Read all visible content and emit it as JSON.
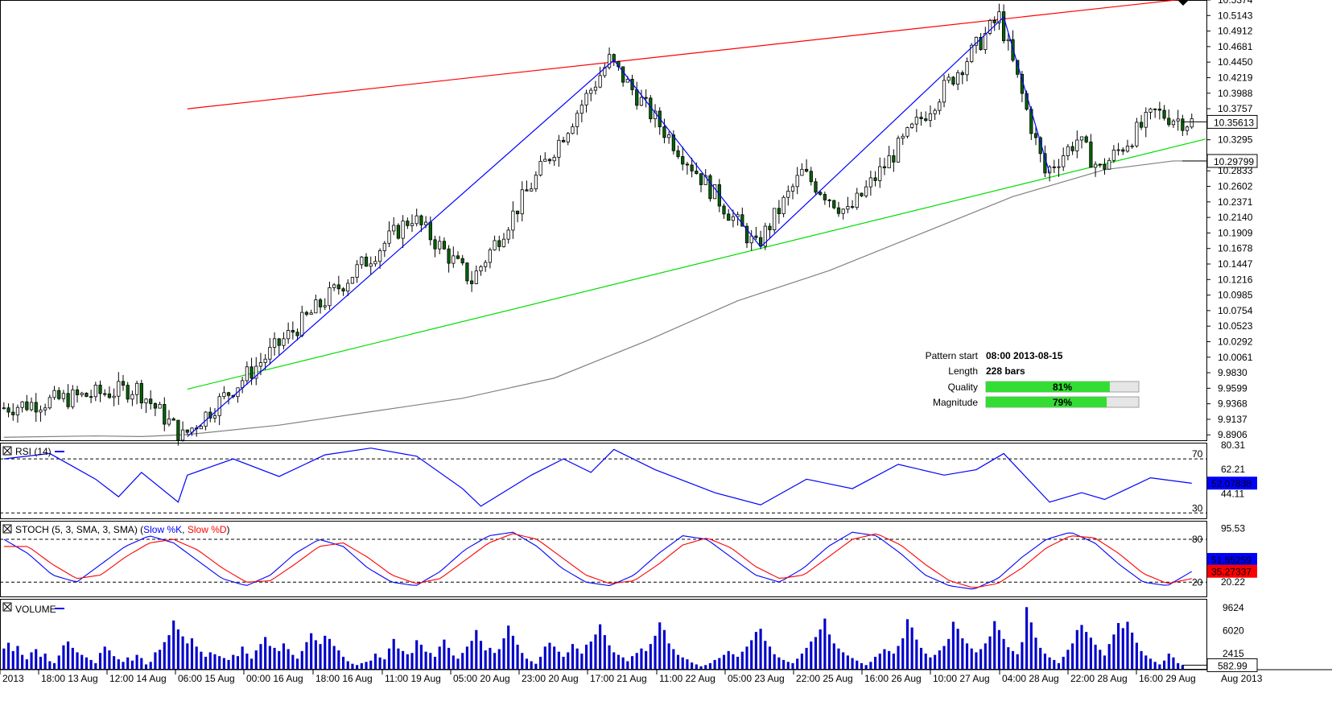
{
  "chart_data": [
    {
      "type": "candlestick",
      "panel": "price",
      "y_ticks": [
        "10.5374",
        "10.5143",
        "10.4912",
        "10.4681",
        "10.4450",
        "10.4219",
        "10.3988",
        "10.3757",
        "10.3295",
        "10.2833",
        "10.2602",
        "10.2371",
        "10.2140",
        "10.1909",
        "10.1678",
        "10.1447",
        "10.1216",
        "10.0985",
        "10.0754",
        "10.0523",
        "10.0292",
        "10.0061",
        "9.9830",
        "9.9599",
        "9.9368",
        "9.9137",
        "9.8906"
      ],
      "ylim": [
        9.8825,
        10.5374
      ],
      "last_price": "10.35613",
      "ma_value": "10.29799",
      "x_labels": [
        "2013",
        "18:00 13 Aug",
        "12:00 14 Aug",
        "06:00 15 Aug",
        "00:00 16 Aug",
        "18:00 16 Aug",
        "11:00 19 Aug",
        "05:00 20 Aug",
        "23:00 20 Aug",
        "17:00 21 Aug",
        "11:00 22 Aug",
        "05:00 23 Aug",
        "22:00 25 Aug",
        "16:00 26 Aug",
        "10:00 27 Aug",
        "04:00 28 Aug",
        "22:00 28 Aug",
        "16:00 29 Aug",
        "Aug 2013"
      ],
      "key_points": [
        {
          "bar": 0,
          "price": 9.93
        },
        {
          "bar": 30,
          "price": 9.96
        },
        {
          "bar": 40,
          "price": 9.888
        },
        {
          "bar": 90,
          "price": 10.215
        },
        {
          "bar": 103,
          "price": 10.12
        },
        {
          "bar": 133,
          "price": 10.448
        },
        {
          "bar": 143,
          "price": 10.36
        },
        {
          "bar": 165,
          "price": 10.17
        },
        {
          "bar": 175,
          "price": 10.28
        },
        {
          "bar": 185,
          "price": 10.22
        },
        {
          "bar": 218,
          "price": 10.512
        },
        {
          "bar": 228,
          "price": 10.28
        },
        {
          "bar": 235,
          "price": 10.33
        },
        {
          "bar": 240,
          "price": 10.285
        },
        {
          "bar": 252,
          "price": 10.37
        },
        {
          "bar": 259,
          "price": 10.356
        }
      ],
      "pattern_lines": {
        "resistance": {
          "color": "#ff0000",
          "from": {
            "bar": 40,
            "price": 10.3755
          },
          "to": {
            "bar": 259,
            "price": 10.54
          }
        },
        "support": {
          "color": "#00dd00",
          "from": {
            "bar": 40,
            "price": 9.9585
          },
          "to": {
            "bar": 262,
            "price": 10.3305
          }
        },
        "zigzag": {
          "color": "#0000ff",
          "points": [
            {
              "bar": 40,
              "price": 9.888
            },
            {
              "bar": 133,
              "price": 10.448
            },
            {
              "bar": 165,
              "price": 10.17
            },
            {
              "bar": 218,
              "price": 10.512
            },
            {
              "bar": 228,
              "price": 10.28
            }
          ]
        }
      },
      "moving_average": {
        "color": "#808080",
        "points": [
          {
            "bar": 0,
            "price": 9.887
          },
          {
            "bar": 20,
            "price": 9.889
          },
          {
            "bar": 30,
            "price": 9.888
          },
          {
            "bar": 40,
            "price": 9.891
          },
          {
            "bar": 60,
            "price": 9.905
          },
          {
            "bar": 80,
            "price": 9.925
          },
          {
            "bar": 100,
            "price": 9.945
          },
          {
            "bar": 120,
            "price": 9.975
          },
          {
            "bar": 140,
            "price": 10.03
          },
          {
            "bar": 160,
            "price": 10.09
          },
          {
            "bar": 180,
            "price": 10.135
          },
          {
            "bar": 200,
            "price": 10.19
          },
          {
            "bar": 220,
            "price": 10.245
          },
          {
            "bar": 240,
            "price": 10.285
          },
          {
            "bar": 255,
            "price": 10.298
          },
          {
            "bar": 262,
            "price": 10.298
          }
        ]
      },
      "pattern_info": {
        "start_label": "Pattern start",
        "start_value": "08:00 2013-08-15",
        "length_label": "Length",
        "length_value": "228 bars",
        "quality_label": "Quality",
        "quality_percent": 81,
        "quality_text": "81%",
        "magnitude_label": "Magnitude",
        "magnitude_percent": 79,
        "magnitude_text": "79%"
      }
    },
    {
      "type": "line",
      "panel": "rsi",
      "title": "RSI (14)",
      "ylim": [
        26,
        82
      ],
      "y_ticks": [
        "80.31",
        "62.21",
        "44.11"
      ],
      "levels": [
        70,
        30
      ],
      "level_labels": [
        "70",
        "30"
      ],
      "last_value": "52.07838",
      "series": [
        {
          "name": "RSI (14)",
          "color": "#0000ff",
          "points": [
            {
              "bar": 0,
              "value": 70
            },
            {
              "bar": 10,
              "value": 74
            },
            {
              "bar": 20,
              "value": 55
            },
            {
              "bar": 25,
              "value": 42
            },
            {
              "bar": 30,
              "value": 60
            },
            {
              "bar": 38,
              "value": 38
            },
            {
              "bar": 40,
              "value": 58
            },
            {
              "bar": 50,
              "value": 70
            },
            {
              "bar": 60,
              "value": 57
            },
            {
              "bar": 70,
              "value": 73
            },
            {
              "bar": 80,
              "value": 78
            },
            {
              "bar": 90,
              "value": 72
            },
            {
              "bar": 100,
              "value": 48
            },
            {
              "bar": 104,
              "value": 35
            },
            {
              "bar": 115,
              "value": 58
            },
            {
              "bar": 122,
              "value": 70
            },
            {
              "bar": 128,
              "value": 60
            },
            {
              "bar": 133,
              "value": 77
            },
            {
              "bar": 142,
              "value": 62
            },
            {
              "bar": 155,
              "value": 45
            },
            {
              "bar": 165,
              "value": 36
            },
            {
              "bar": 175,
              "value": 55
            },
            {
              "bar": 185,
              "value": 48
            },
            {
              "bar": 195,
              "value": 66
            },
            {
              "bar": 205,
              "value": 58
            },
            {
              "bar": 212,
              "value": 62
            },
            {
              "bar": 218,
              "value": 74
            },
            {
              "bar": 228,
              "value": 38
            },
            {
              "bar": 235,
              "value": 45
            },
            {
              "bar": 240,
              "value": 40
            },
            {
              "bar": 250,
              "value": 56
            },
            {
              "bar": 259,
              "value": 52
            }
          ]
        }
      ]
    },
    {
      "type": "line",
      "panel": "stoch",
      "title_prefix": "STOCH (5, 3, SMA, 3, SMA) (",
      "title_k": "Slow %K",
      "title_d": "Slow %D",
      "title_suffix": ")",
      "ylim": [
        0,
        106
      ],
      "y_ticks": [
        "95.53",
        "20.22"
      ],
      "levels": [
        80,
        20
      ],
      "level_labels": [
        "80",
        "20"
      ],
      "last_k": "51.85259",
      "last_d": "35.27337",
      "series": [
        {
          "name": "Slow %K",
          "color": "#0000ff",
          "values": [
            80,
            60,
            30,
            20,
            45,
            70,
            85,
            75,
            50,
            25,
            15,
            30,
            60,
            80,
            70,
            40,
            20,
            15,
            35,
            65,
            85,
            90,
            70,
            40,
            20,
            15,
            30,
            60,
            85,
            80,
            55,
            30,
            20,
            40,
            70,
            90,
            85,
            60,
            30,
            15,
            10,
            25,
            55,
            80,
            90,
            75,
            45,
            20,
            15,
            35
          ]
        },
        {
          "name": "Slow %D",
          "color": "#ff0000",
          "values": [
            70,
            70,
            45,
            25,
            30,
            55,
            75,
            80,
            65,
            40,
            20,
            22,
            45,
            70,
            75,
            55,
            30,
            18,
            25,
            50,
            75,
            88,
            80,
            55,
            30,
            18,
            22,
            45,
            72,
            82,
            68,
            42,
            25,
            30,
            55,
            80,
            88,
            72,
            45,
            22,
            12,
            18,
            40,
            68,
            85,
            82,
            60,
            32,
            18,
            25
          ]
        }
      ]
    },
    {
      "type": "bar",
      "panel": "volume",
      "title": "VOLUME",
      "ylim": [
        0,
        11000
      ],
      "y_ticks": [
        "9624",
        "6020",
        "2415"
      ],
      "last_value": "582.99",
      "color": "#0000cc",
      "values": [
        3200,
        4100,
        2800,
        3600,
        2200,
        1500,
        2600,
        3100,
        1900,
        2400,
        1200,
        900,
        2100,
        3700,
        4300,
        3300,
        2600,
        2200,
        1800,
        1400,
        900,
        2500,
        3500,
        2900,
        2000,
        1500,
        1100,
        1800,
        1300,
        2200,
        1700,
        700,
        1100,
        2600,
        3000,
        4200,
        5300,
        7600,
        6200,
        5100,
        4000,
        4800,
        3500,
        2700,
        1900,
        2600,
        2300,
        2000,
        1700,
        1400,
        2200,
        2000,
        3500,
        2400,
        1600,
        2900,
        3900,
        5000,
        3600,
        3300,
        2800,
        4000,
        3100,
        2200,
        1600,
        2800,
        4200,
        5600,
        4500,
        3900,
        5200,
        4700,
        3600,
        2900,
        1900,
        1200,
        800,
        600,
        900,
        1100,
        1300,
        2400,
        1800,
        1500,
        3200,
        4700,
        3200,
        2800,
        2300,
        2500,
        4500,
        3800,
        2700,
        2500,
        1900,
        3500,
        4600,
        3300,
        2100,
        1600,
        2500,
        3500,
        4400,
        6100,
        4400,
        2900,
        3300,
        2500,
        3100,
        4800,
        6800,
        5200,
        3800,
        2500,
        1600,
        1200,
        800,
        1900,
        3500,
        4100,
        3500,
        2700,
        1900,
        2600,
        3900,
        3200,
        2400,
        3800,
        4300,
        5400,
        7000,
        5300,
        3700,
        2600,
        2200,
        1800,
        1200,
        2000,
        2500,
        3200,
        2800,
        3900,
        5200,
        7300,
        6100,
        4000,
        3100,
        2200,
        1800,
        1500,
        1000,
        700,
        400,
        600,
        900,
        1400,
        1700,
        2200,
        2800,
        2300,
        1900,
        2700,
        3500,
        4500,
        5800,
        6300,
        4400,
        3500,
        2300,
        1800,
        1400,
        1100,
        900,
        1600,
        2400,
        3300,
        4300,
        5000,
        6200,
        7900,
        5400,
        4000,
        3200,
        2600,
        2100,
        1700,
        1300,
        900,
        600,
        1100,
        1900,
        2400,
        3100,
        2800,
        2400,
        3600,
        4800,
        7800,
        6500,
        4600,
        3300,
        2400,
        1800,
        2200,
        2900,
        3600,
        4700,
        7400,
        6300,
        4800,
        4000,
        3200,
        2600,
        3100,
        4000,
        5100,
        7500,
        6100,
        4700,
        3400,
        2800,
        2300,
        4200,
        9700,
        7300,
        4900,
        3300,
        2400,
        1800,
        1400,
        900,
        1900,
        3000,
        4000,
        6100,
        6900,
        5800,
        4900,
        3800,
        3000,
        2100,
        3900,
        5400,
        7200,
        6400,
        7400,
        5700,
        4100,
        2800,
        2100,
        1600,
        1100,
        700,
        1300,
        2400,
        1800,
        900,
        583
      ]
    }
  ]
}
